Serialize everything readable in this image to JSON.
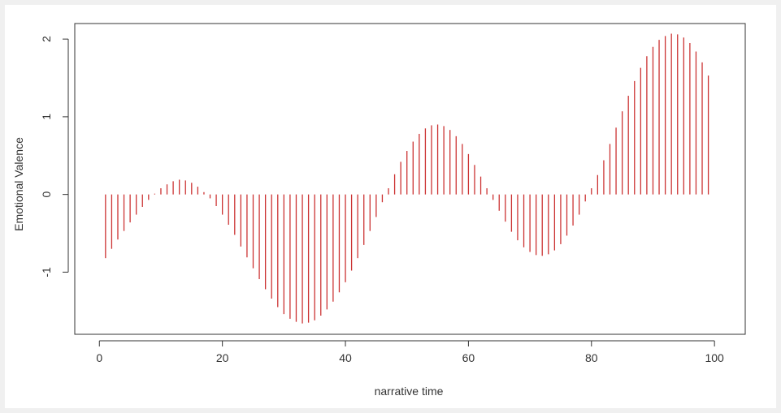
{
  "chart_data": {
    "type": "line",
    "style": "vertical-stems",
    "xlabel": "narrative time",
    "ylabel": "Emotional Valence",
    "xlim": [
      -4,
      105
    ],
    "ylim": [
      -1.8,
      2.2
    ],
    "x_ticks": [
      0,
      20,
      40,
      60,
      80,
      100
    ],
    "y_ticks": [
      -1,
      0,
      1,
      2
    ],
    "x_tick_labels": [
      "0",
      "20",
      "40",
      "60",
      "80",
      "100"
    ],
    "y_tick_labels": [
      "-1",
      "0",
      "1",
      "2"
    ],
    "color": "#cc3333",
    "grid": false,
    "x": [
      1,
      2,
      3,
      4,
      5,
      6,
      7,
      8,
      9,
      10,
      11,
      12,
      13,
      14,
      15,
      16,
      17,
      18,
      19,
      20,
      21,
      22,
      23,
      24,
      25,
      26,
      27,
      28,
      29,
      30,
      31,
      32,
      33,
      34,
      35,
      36,
      37,
      38,
      39,
      40,
      41,
      42,
      43,
      44,
      45,
      46,
      47,
      48,
      49,
      50,
      51,
      52,
      53,
      54,
      55,
      56,
      57,
      58,
      59,
      60,
      61,
      62,
      63,
      64,
      65,
      66,
      67,
      68,
      69,
      70,
      71,
      72,
      73,
      74,
      75,
      76,
      77,
      78,
      79,
      80,
      81,
      82,
      83,
      84,
      85,
      86,
      87,
      88,
      89,
      90,
      91,
      92,
      93,
      94,
      95,
      96,
      97,
      98,
      99,
      100
    ],
    "values": [
      -0.82,
      -0.7,
      -0.58,
      -0.47,
      -0.36,
      -0.26,
      -0.16,
      -0.07,
      0.01,
      0.08,
      0.13,
      0.17,
      0.19,
      0.18,
      0.15,
      0.1,
      0.03,
      -0.05,
      -0.15,
      -0.26,
      -0.39,
      -0.52,
      -0.67,
      -0.81,
      -0.95,
      -1.09,
      -1.22,
      -1.34,
      -1.45,
      -1.54,
      -1.6,
      -1.64,
      -1.66,
      -1.65,
      -1.62,
      -1.56,
      -1.48,
      -1.38,
      -1.26,
      -1.13,
      -0.98,
      -0.82,
      -0.65,
      -0.47,
      -0.29,
      -0.1,
      0.08,
      0.26,
      0.42,
      0.56,
      0.68,
      0.78,
      0.85,
      0.89,
      0.9,
      0.88,
      0.83,
      0.75,
      0.65,
      0.52,
      0.38,
      0.23,
      0.08,
      -0.07,
      -0.21,
      -0.35,
      -0.48,
      -0.59,
      -0.68,
      -0.74,
      -0.78,
      -0.79,
      -0.77,
      -0.72,
      -0.64,
      -0.53,
      -0.4,
      -0.26,
      -0.09,
      0.08,
      0.25,
      0.44,
      0.65,
      0.86,
      1.07,
      1.27,
      1.46,
      1.63,
      1.78,
      1.9,
      1.99,
      2.04,
      2.07,
      2.06,
      2.02,
      1.95,
      1.84,
      1.7,
      1.53,
      0.0
    ]
  }
}
